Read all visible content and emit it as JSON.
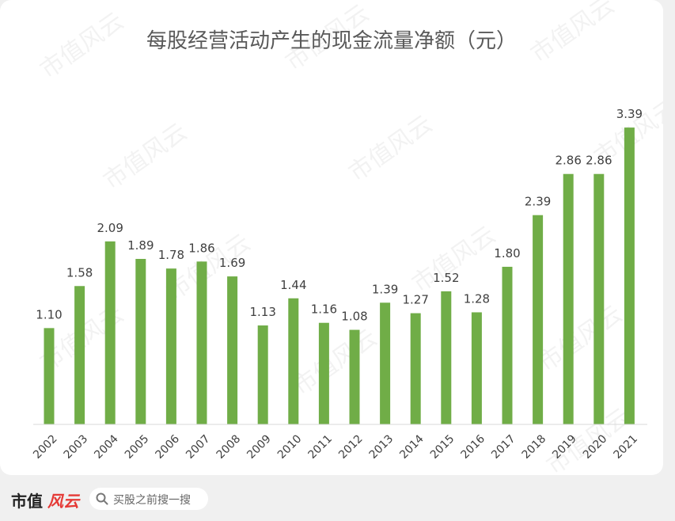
{
  "chart_data": {
    "type": "bar",
    "title": "每股经营活动产生的现金流量净额（元）",
    "categories": [
      "2002",
      "2003",
      "2004",
      "2005",
      "2006",
      "2007",
      "2008",
      "2009",
      "2010",
      "2011",
      "2012",
      "2013",
      "2014",
      "2015",
      "2016",
      "2017",
      "2018",
      "2019",
      "2020",
      "2021"
    ],
    "values": [
      1.1,
      1.58,
      2.09,
      1.89,
      1.78,
      1.86,
      1.69,
      1.13,
      1.44,
      1.16,
      1.08,
      1.39,
      1.27,
      1.52,
      1.28,
      1.8,
      2.39,
      2.86,
      2.86,
      3.39
    ],
    "value_labels": [
      "1.10",
      "1.58",
      "2.09",
      "1.89",
      "1.78",
      "1.86",
      "1.69",
      "1.13",
      "1.44",
      "1.16",
      "1.08",
      "1.39",
      "1.27",
      "1.52",
      "1.28",
      "1.80",
      "2.39",
      "2.86",
      "2.86",
      "3.39"
    ],
    "ylim": [
      0,
      3.4
    ],
    "grid": false,
    "bar_color": "#70ad47"
  },
  "footer": {
    "brand": "市值",
    "brand_mark": "风云",
    "search_placeholder": "买股之前搜一搜",
    "search_icon": "search-icon"
  },
  "watermark": "市值风云"
}
